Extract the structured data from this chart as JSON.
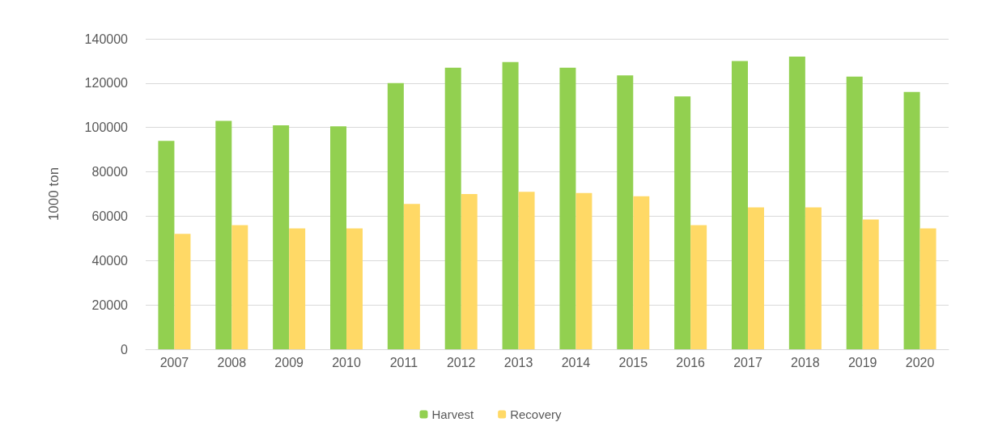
{
  "chart_data": {
    "type": "bar",
    "ylabel": "1000 ton",
    "categories": [
      "2007",
      "2008",
      "2009",
      "2010",
      "2011",
      "2012",
      "2013",
      "2014",
      "2015",
      "2016",
      "2017",
      "2018",
      "2019",
      "2020"
    ],
    "series": [
      {
        "name": "Harvest",
        "color": "#92d050",
        "values": [
          94000,
          103000,
          101000,
          100500,
          120000,
          127000,
          129500,
          127000,
          123500,
          114000,
          130000,
          132000,
          123000,
          116000
        ]
      },
      {
        "name": "Recovery",
        "color": "#ffd966",
        "values": [
          52000,
          56000,
          54500,
          54500,
          65500,
          70000,
          71000,
          70500,
          69000,
          56000,
          64000,
          64000,
          58500,
          54500
        ]
      }
    ],
    "ylim": [
      0,
      140000
    ],
    "yticks": [
      0,
      20000,
      40000,
      60000,
      80000,
      100000,
      120000,
      140000
    ],
    "grid": "y",
    "legend": "bottom"
  }
}
